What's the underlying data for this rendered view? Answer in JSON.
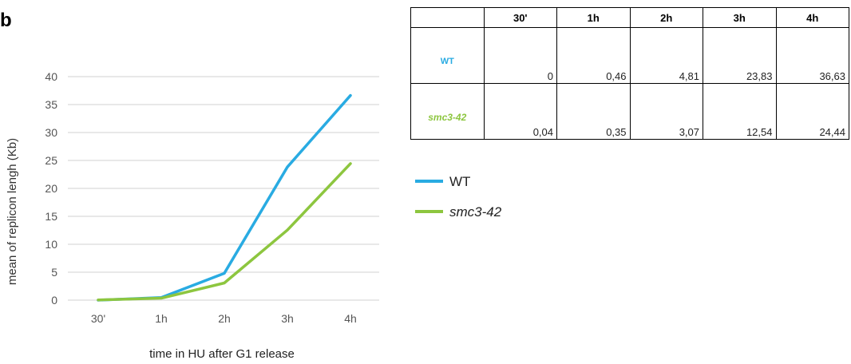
{
  "panel_label": "b",
  "table": {
    "columns": [
      "",
      "30'",
      "1h",
      "2h",
      "3h",
      "4h"
    ],
    "rows": [
      {
        "label": "WT",
        "label_color": "#29abe2",
        "italic": false,
        "cells": [
          "0",
          "0,46",
          "4,81",
          "23,83",
          "36,63"
        ]
      },
      {
        "label": "smc3-42",
        "label_color": "#8dc63f",
        "italic": true,
        "cells": [
          "0,04",
          "0,35",
          "3,07",
          "12,54",
          "24,44"
        ]
      }
    ]
  },
  "chart_data": {
    "type": "line",
    "categories": [
      "30'",
      "1h",
      "2h",
      "3h",
      "4h"
    ],
    "series": [
      {
        "name": "WT",
        "color": "#29abe2",
        "italic": false,
        "values": [
          0,
          0.46,
          4.81,
          23.83,
          36.63
        ]
      },
      {
        "name": "smc3-42",
        "color": "#8dc63f",
        "italic": true,
        "values": [
          0.04,
          0.35,
          3.07,
          12.54,
          24.44
        ]
      }
    ],
    "title": "",
    "xlabel": "time  in HU after G1 release",
    "ylabel": "mean of replicon  lengh  (Kb)",
    "ylim": [
      0,
      40
    ],
    "yticks": [
      0,
      5,
      10,
      15,
      20,
      25,
      30,
      35,
      40
    ],
    "grid": true,
    "legend_position": "right"
  }
}
